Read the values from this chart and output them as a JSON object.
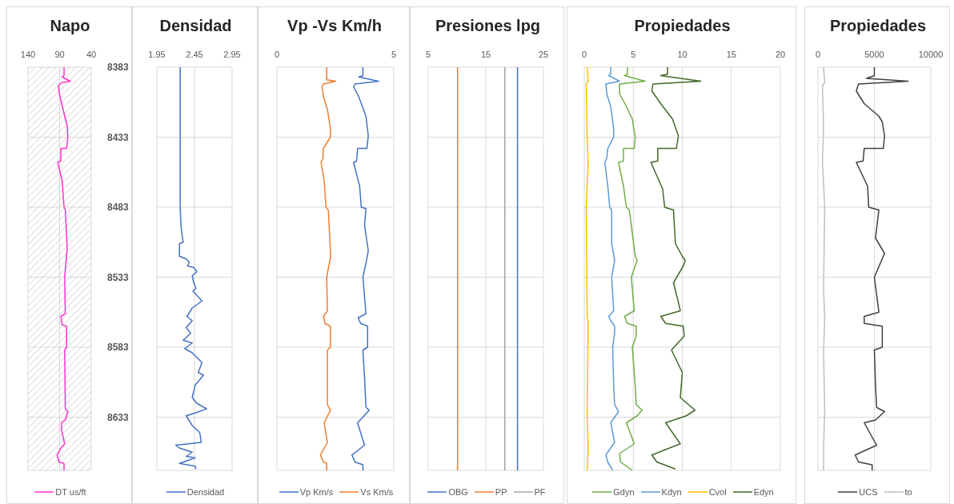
{
  "chart_data": [
    {
      "type": "line",
      "title": "Napo",
      "xlim": [
        140,
        40
      ],
      "xticks": [
        140,
        90,
        40
      ],
      "ylim": [
        8671,
        8383
      ],
      "yticks": [
        8383,
        8433,
        8483,
        8533,
        8583,
        8633
      ],
      "grid": true,
      "legend": "bottom",
      "marker": "none",
      "bands": [
        {
          "axis": "x",
          "from": 140,
          "to": 40,
          "color": "#c8c8c8"
        }
      ],
      "series": [
        {
          "name": "DT us/ft",
          "color": "#ff33cc",
          "x": [
            83,
            83,
            86,
            73,
            86,
            92,
            91,
            88,
            83,
            78,
            77,
            79,
            88,
            88,
            93,
            86,
            83,
            81,
            78,
            82,
            81,
            88,
            86,
            79,
            79,
            82,
            81,
            77,
            81,
            87,
            87,
            82,
            88,
            94,
            91,
            83,
            83
          ],
          "values": [
            8383,
            8389,
            8390,
            8393,
            8394,
            8396,
            8400,
            8407,
            8416,
            8425,
            8433,
            8441,
            8441,
            8450,
            8451,
            8464,
            8483,
            8485,
            8512,
            8533,
            8559,
            8561,
            8567,
            8568,
            8583,
            8585,
            8627,
            8629,
            8635,
            8637,
            8642,
            8652,
            8655,
            8660,
            8665,
            8666,
            8671
          ]
        }
      ]
    },
    {
      "type": "line",
      "title": "Densidad",
      "xlim": [
        1.95,
        2.95
      ],
      "xticks": [
        1.95,
        2.45,
        2.95
      ],
      "ylim": [
        8671,
        8383
      ],
      "yticks": [
        8383,
        8433,
        8483,
        8533,
        8583,
        8633
      ],
      "grid": true,
      "legend": "bottom",
      "marker": "none",
      "tick_labels": "x",
      "series": [
        {
          "name": "Densidad",
          "color": "#4472c4",
          "x": [
            2.26,
            2.26,
            2.27,
            2.29,
            2.3,
            2.25,
            2.25,
            2.34,
            2.38,
            2.36,
            2.44,
            2.48,
            2.42,
            2.44,
            2.47,
            2.43,
            2.55,
            2.42,
            2.35,
            2.42,
            2.34,
            2.4,
            2.3,
            2.42,
            2.32,
            2.42,
            2.55,
            2.5,
            2.57,
            2.46,
            2.42,
            2.48,
            2.61,
            2.46,
            2.34,
            2.42,
            2.52,
            2.54,
            2.2,
            2.25,
            2.42,
            2.34,
            2.46,
            2.25,
            2.46,
            2.47
          ],
          "values": [
            8383,
            8483,
            8496,
            8505,
            8508,
            8509,
            8518,
            8520,
            8522,
            8525,
            8526,
            8529,
            8532,
            8537,
            8541,
            8543,
            8550,
            8555,
            8561,
            8564,
            8569,
            8573,
            8578,
            8580,
            8584,
            8587,
            8594,
            8601,
            8603,
            8610,
            8619,
            8623,
            8627,
            8630,
            8632,
            8639,
            8644,
            8651,
            8653,
            8655,
            8658,
            8661,
            8662,
            8666,
            8668,
            8670
          ]
        }
      ]
    },
    {
      "type": "line",
      "title": "Vp -Vs Km/h",
      "xlim": [
        0,
        5
      ],
      "xticks": [
        0,
        5
      ],
      "ylim": [
        8671,
        8383
      ],
      "yticks": [
        8383,
        8433,
        8483,
        8533,
        8583,
        8633
      ],
      "grid": true,
      "legend": "bottom",
      "marker": "none",
      "tick_labels": "x",
      "series": [
        {
          "name": "Vp Km/s",
          "color": "#4472c4",
          "x": [
            3.68,
            3.68,
            3.5,
            4.35,
            3.34,
            3.28,
            3.5,
            3.81,
            3.91,
            3.85,
            3.45,
            3.41,
            3.28,
            3.54,
            3.61,
            3.81,
            3.75,
            3.91,
            3.81,
            3.68,
            3.81,
            3.48,
            3.58,
            3.88,
            3.88,
            3.68,
            3.75,
            3.81,
            3.95,
            3.45,
            3.75,
            3.21,
            3.34,
            3.68,
            3.68
          ],
          "values": [
            8383,
            8389,
            8390,
            8393,
            8395,
            8397,
            8404,
            8418,
            8432,
            8441,
            8441,
            8450,
            8451,
            8468,
            8483,
            8484,
            8496,
            8514,
            8523,
            8533,
            8559,
            8562,
            8566,
            8568,
            8583,
            8585,
            8605,
            8626,
            8628,
            8637,
            8653,
            8660,
            8665,
            8667,
            8671
          ]
        },
        {
          "name": "Vs Km/s",
          "color": "#ed7d31",
          "x": [
            2.13,
            2.13,
            2.51,
            1.99,
            1.93,
            1.99,
            2.16,
            2.29,
            2.29,
            1.99,
            1.97,
            1.89,
            2.02,
            2.1,
            2.2,
            2.3,
            2.13,
            2.16,
            1.99,
            2.06,
            2.29,
            2.29,
            2.16,
            2.16,
            2.29,
            2.02,
            2.16,
            1.86,
            1.99,
            2.13,
            2.13
          ],
          "values": [
            8383,
            8392,
            8393,
            8395,
            8397,
            8404,
            8413,
            8427,
            8433,
            8441,
            8448,
            8451,
            8464,
            8483,
            8485,
            8518,
            8533,
            8557,
            8561,
            8566,
            8568,
            8583,
            8585,
            8624,
            8628,
            8637,
            8651,
            8660,
            8665,
            8666,
            8671
          ]
        }
      ]
    },
    {
      "type": "line",
      "title": "Presiones lpg",
      "xlim": [
        5,
        25
      ],
      "xticks": [
        5,
        15,
        25
      ],
      "ylim": [
        8671,
        8383
      ],
      "yticks": [
        8383,
        8433,
        8483,
        8533,
        8583,
        8633
      ],
      "grid": true,
      "legend": "bottom",
      "marker": "none",
      "tick_labels": "x",
      "series": [
        {
          "name": "OBG",
          "color": "#4472c4",
          "x": [
            20.5,
            20.5
          ],
          "values": [
            8383,
            8671
          ]
        },
        {
          "name": "PP",
          "color": "#ed7d31",
          "x": [
            10.1,
            10.1
          ],
          "values": [
            8383,
            8671
          ]
        },
        {
          "name": "PF",
          "color": "#a5a5a5",
          "x": [
            18.3,
            18.3
          ],
          "values": [
            8383,
            8671
          ]
        }
      ]
    },
    {
      "type": "line",
      "title": "Propiedades",
      "xlim": [
        0,
        20
      ],
      "xticks": [
        0,
        5,
        10,
        15,
        20
      ],
      "ylim": [
        8671,
        8383
      ],
      "yticks": [
        8383,
        8433,
        8483,
        8533,
        8583,
        8633
      ],
      "grid": true,
      "legend": "bottom",
      "marker": "none",
      "tick_labels": "x",
      "series": [
        {
          "name": "Gdyn",
          "color": "#70ad47",
          "x": [
            4.4,
            4.4,
            4.1,
            6.2,
            3.6,
            3.6,
            4.3,
            4.9,
            5.2,
            5.1,
            4.0,
            4.0,
            3.5,
            4.0,
            4.3,
            4.6,
            4.8,
            5.2,
            5.4,
            4.8,
            5.1,
            4.1,
            4.4,
            5.3,
            5.3,
            4.9,
            5.2,
            5.3,
            5.9,
            5.4,
            4.3,
            5.1,
            3.6,
            3.7,
            4.9
          ],
          "values": [
            8383,
            8388,
            8389,
            8393,
            8395,
            8402,
            8411,
            8420,
            8433,
            8441,
            8441,
            8450,
            8451,
            8468,
            8483,
            8485,
            8496,
            8518,
            8521,
            8533,
            8557,
            8561,
            8566,
            8568,
            8575,
            8583,
            8610,
            8624,
            8628,
            8632,
            8637,
            8652,
            8659,
            8665,
            8671
          ]
        },
        {
          "name": "Kdyn",
          "color": "#5b9bd5",
          "x": [
            2.7,
            2.7,
            2.5,
            3.6,
            2.2,
            2.3,
            2.7,
            3.0,
            3.0,
            2.4,
            2.3,
            2.1,
            2.4,
            2.6,
            2.8,
            2.8,
            3.1,
            2.8,
            3.0,
            2.5,
            2.7,
            3.1,
            3.1,
            2.9,
            3.0,
            3.1,
            3.5,
            2.7,
            3.1,
            2.2,
            2.4,
            2.9
          ],
          "values": [
            8383,
            8388,
            8389,
            8393,
            8395,
            8402,
            8411,
            8427,
            8433,
            8441,
            8448,
            8451,
            8468,
            8483,
            8485,
            8509,
            8521,
            8533,
            8557,
            8561,
            8564,
            8568,
            8573,
            8583,
            8610,
            8624,
            8629,
            8637,
            8651,
            8660,
            8665,
            8671
          ]
        },
        {
          "name": "Cvol",
          "color": "#ffc000",
          "x": [
            0.3,
            0.4,
            0.2,
            0.3,
            0.4,
            0.2,
            0.3,
            0.4,
            0.3,
            0.4,
            0.3
          ],
          "values": [
            8383,
            8393,
            8395,
            8433,
            8452,
            8483,
            8562,
            8564,
            8632,
            8655,
            8671
          ]
        },
        {
          "name": "Edyn",
          "color": "#43682b",
          "x": [
            8.5,
            8.5,
            7.8,
            11.9,
            7.0,
            6.9,
            7.8,
            9.0,
            9.6,
            9.4,
            7.5,
            7.5,
            6.8,
            8.0,
            8.2,
            9.1,
            9.3,
            10.0,
            10.3,
            10.1,
            9.1,
            9.5,
            9.8,
            7.8,
            8.3,
            10.1,
            10.2,
            8.9,
            10.0,
            9.8,
            11.3,
            10.4,
            8.3,
            9.8,
            8.7,
            6.9,
            7.4,
            9.3
          ],
          "values": [
            8383,
            8388,
            8389,
            8393,
            8395,
            8400,
            8409,
            8420,
            8432,
            8441,
            8441,
            8450,
            8451,
            8470,
            8483,
            8485,
            8509,
            8518,
            8521,
            8525,
            8537,
            8548,
            8557,
            8561,
            8566,
            8568,
            8575,
            8585,
            8601,
            8619,
            8628,
            8632,
            8637,
            8652,
            8655,
            8660,
            8665,
            8670
          ]
        }
      ]
    },
    {
      "type": "line",
      "title": "Propiedades",
      "xlim": [
        0,
        10000
      ],
      "xticks": [
        0,
        5000,
        10000
      ],
      "ylim": [
        8671,
        8383
      ],
      "yticks": [
        8383,
        8433,
        8483,
        8533,
        8583,
        8633
      ],
      "grid": true,
      "legend": "bottom",
      "marker": "none",
      "tick_labels": "x",
      "series": [
        {
          "name": "UCS",
          "color": "#404040",
          "x": [
            5000,
            5000,
            4300,
            8000,
            3600,
            3400,
            4100,
            5400,
            5700,
            5900,
            5800,
            4100,
            4000,
            3400,
            4400,
            4500,
            5400,
            5100,
            5900,
            5000,
            5400,
            4100,
            4100,
            5700,
            5700,
            5000,
            5100,
            5200,
            5900,
            5100,
            4100,
            5200,
            3300,
            3600,
            4800,
            4800
          ],
          "values": [
            8383,
            8389,
            8391,
            8393,
            8395,
            8400,
            8409,
            8418,
            8422,
            8432,
            8441,
            8441,
            8450,
            8451,
            8468,
            8483,
            8485,
            8505,
            8516,
            8533,
            8558,
            8561,
            8566,
            8568,
            8583,
            8585,
            8610,
            8626,
            8629,
            8635,
            8637,
            8653,
            8660,
            8665,
            8667,
            8671
          ]
        },
        {
          "name": "to",
          "color": "#bfbfbf",
          "x": [
            500,
            600,
            400,
            500,
            400,
            600,
            500,
            600,
            500,
            600,
            500,
            500
          ],
          "values": [
            8383,
            8394,
            8396,
            8427,
            8450,
            8483,
            8541,
            8562,
            8587,
            8628,
            8655,
            8671
          ]
        }
      ]
    }
  ]
}
